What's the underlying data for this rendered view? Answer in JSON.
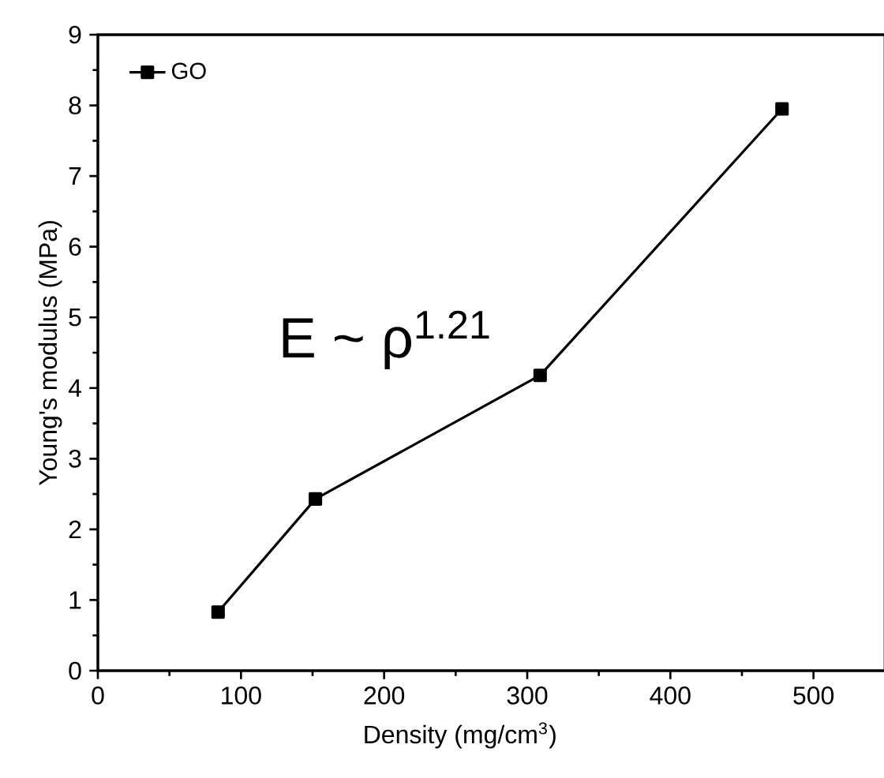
{
  "chart_data": {
    "type": "line",
    "xlabel": "Density (mg/cm$^{3}$)",
    "ylabel": "Young's modulus (MPa)",
    "x": [
      84,
      152,
      309,
      478
    ],
    "series": [
      {
        "name": "GO",
        "color": "#000000",
        "values": [
          0.83,
          2.43,
          4.18,
          7.95
        ]
      }
    ],
    "xlim": [
      0,
      550
    ],
    "ylim": [
      0,
      9
    ],
    "xticks": [
      0,
      100,
      200,
      300,
      400,
      500
    ],
    "yticks": [
      0,
      1,
      2,
      3,
      4,
      5,
      6,
      7,
      8,
      9
    ],
    "marker": "square",
    "line_style": "solid",
    "legend": "top left",
    "grid": false,
    "annotations": [
      "E ~ ρ$^{1.21}$"
    ]
  }
}
